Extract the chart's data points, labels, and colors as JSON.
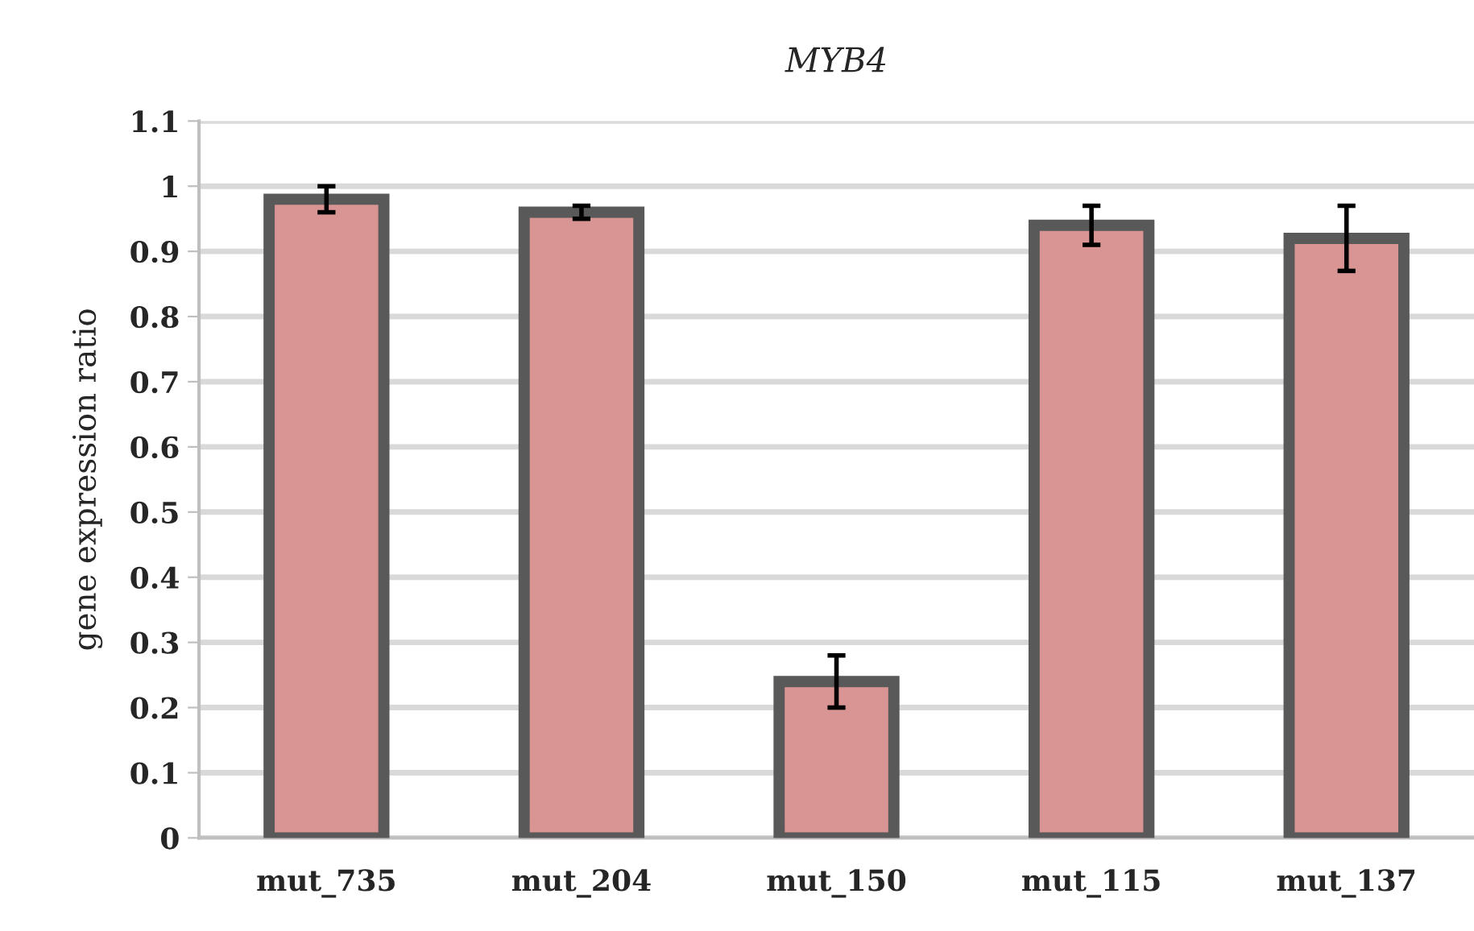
{
  "chart_data": {
    "type": "bar",
    "title": "MYB4",
    "ylabel": "gene expression ratio",
    "categories": [
      "mut_735",
      "mut_204",
      "mut_150",
      "mut_115",
      "mut_137"
    ],
    "values": [
      0.98,
      0.96,
      0.24,
      0.94,
      0.92
    ],
    "errors": [
      0.02,
      0.01,
      0.04,
      0.03,
      0.05
    ],
    "color": "#d99594",
    "ylim": [
      0,
      1.1
    ],
    "yticks": [
      0,
      0.1,
      0.2,
      0.3,
      0.4,
      0.5,
      0.6,
      0.7,
      0.8,
      0.9,
      1,
      1.1
    ],
    "grid": "y",
    "legend": false
  }
}
